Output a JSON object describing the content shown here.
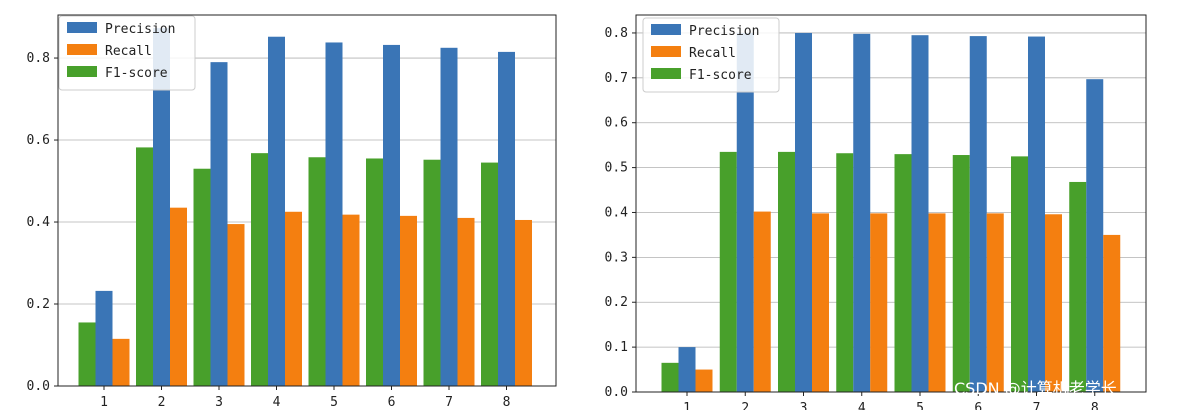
{
  "chart_data": [
    {
      "type": "bar",
      "categories": [
        "1",
        "2",
        "3",
        "4",
        "5",
        "6",
        "7",
        "8"
      ],
      "series": [
        {
          "name": "Precision",
          "color": "#3a75b6",
          "values": [
            0.232,
            0.873,
            0.79,
            0.852,
            0.838,
            0.832,
            0.825,
            0.815
          ]
        },
        {
          "name": "Recall",
          "color": "#f47f10",
          "values": [
            0.115,
            0.435,
            0.395,
            0.425,
            0.418,
            0.415,
            0.41,
            0.405
          ]
        },
        {
          "name": "F1-score",
          "color": "#48a02b",
          "values": [
            0.155,
            0.582,
            0.53,
            0.568,
            0.558,
            0.555,
            0.552,
            0.545
          ]
        }
      ],
      "yticks": [
        "0.0",
        "0.2",
        "0.4",
        "0.6",
        "0.8"
      ],
      "ylim": [
        0,
        0.905
      ],
      "grid": "y",
      "legend": "top-left",
      "title": "",
      "xlabel": "",
      "ylabel": ""
    },
    {
      "type": "bar",
      "categories": [
        "1",
        "2",
        "3",
        "4",
        "5",
        "6",
        "7",
        "8"
      ],
      "series": [
        {
          "name": "Precision",
          "color": "#3a75b6",
          "values": [
            0.1,
            0.8,
            0.8,
            0.798,
            0.795,
            0.793,
            0.792,
            0.697
          ]
        },
        {
          "name": "Recall",
          "color": "#f47f10",
          "values": [
            0.05,
            0.402,
            0.398,
            0.398,
            0.398,
            0.398,
            0.396,
            0.35
          ]
        },
        {
          "name": "F1-score",
          "color": "#48a02b",
          "values": [
            0.065,
            0.535,
            0.535,
            0.532,
            0.53,
            0.528,
            0.525,
            0.468
          ]
        }
      ],
      "yticks": [
        "0.0",
        "0.1",
        "0.2",
        "0.3",
        "0.4",
        "0.5",
        "0.6",
        "0.7",
        "0.8"
      ],
      "ylim": [
        0,
        0.84
      ],
      "grid": "y",
      "legend": "top-left",
      "title": "",
      "xlabel": "",
      "ylabel": ""
    }
  ],
  "watermark": "CSDN @计算机老学长"
}
